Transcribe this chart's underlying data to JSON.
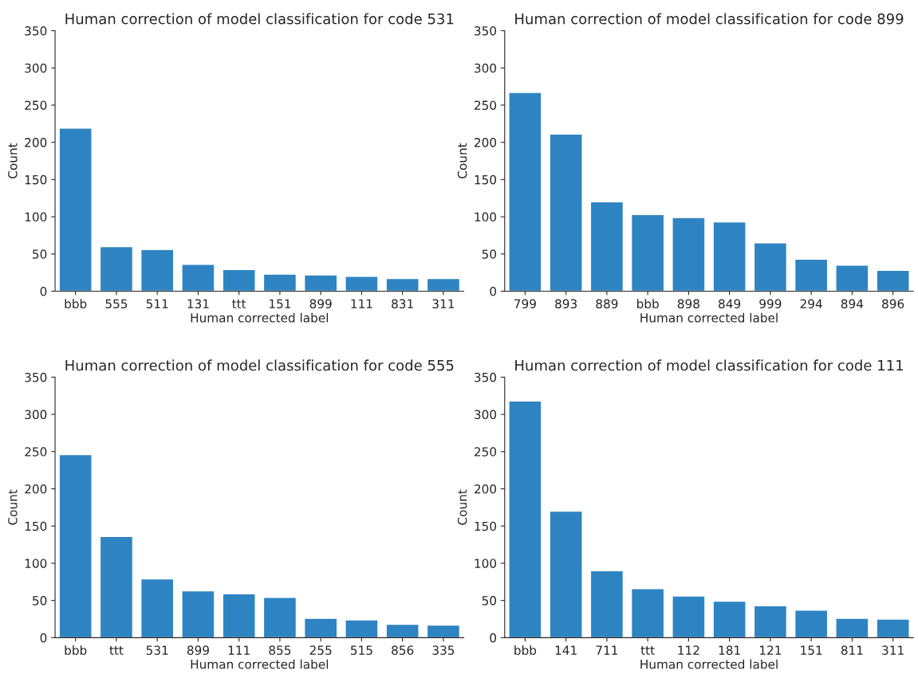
{
  "chart_data": [
    {
      "type": "bar",
      "title": "Human correction of model classification for code 531",
      "xlabel": "Human corrected label",
      "ylabel": "Count",
      "categories": [
        "bbb",
        "555",
        "511",
        "131",
        "ttt",
        "151",
        "899",
        "111",
        "831",
        "311"
      ],
      "values": [
        219,
        60,
        56,
        36,
        29,
        23,
        22,
        20,
        17,
        17
      ],
      "color": "#2e84c2",
      "ylim": [
        0,
        350
      ],
      "yticks": [
        0,
        50,
        100,
        150,
        200,
        250,
        300,
        350
      ],
      "grid": false,
      "legend": false
    },
    {
      "type": "bar",
      "title": "Human correction of model classification for code 899",
      "xlabel": "Human corrected label",
      "ylabel": "Count",
      "categories": [
        "799",
        "893",
        "889",
        "bbb",
        "898",
        "849",
        "999",
        "294",
        "894",
        "896"
      ],
      "values": [
        267,
        211,
        120,
        103,
        99,
        93,
        65,
        43,
        35,
        28
      ],
      "color": "#2e84c2",
      "ylim": [
        0,
        350
      ],
      "yticks": [
        0,
        50,
        100,
        150,
        200,
        250,
        300,
        350
      ],
      "grid": false,
      "legend": false
    },
    {
      "type": "bar",
      "title": "Human correction of model classification for code 555",
      "xlabel": "Human corrected label",
      "ylabel": "Count",
      "categories": [
        "bbb",
        "ttt",
        "531",
        "899",
        "111",
        "855",
        "255",
        "515",
        "856",
        "335"
      ],
      "values": [
        246,
        136,
        79,
        63,
        59,
        54,
        26,
        24,
        18,
        17
      ],
      "color": "#2e84c2",
      "ylim": [
        0,
        350
      ],
      "yticks": [
        0,
        50,
        100,
        150,
        200,
        250,
        300,
        350
      ],
      "grid": false,
      "legend": false
    },
    {
      "type": "bar",
      "title": "Human correction of model classification for code 111",
      "xlabel": "Human corrected label",
      "ylabel": "Count",
      "categories": [
        "bbb",
        "141",
        "711",
        "ttt",
        "112",
        "181",
        "121",
        "151",
        "811",
        "311"
      ],
      "values": [
        318,
        170,
        90,
        66,
        56,
        49,
        43,
        37,
        26,
        25
      ],
      "color": "#2e84c2",
      "ylim": [
        0,
        350
      ],
      "yticks": [
        0,
        50,
        100,
        150,
        200,
        250,
        300,
        350
      ],
      "grid": false,
      "legend": false
    }
  ]
}
